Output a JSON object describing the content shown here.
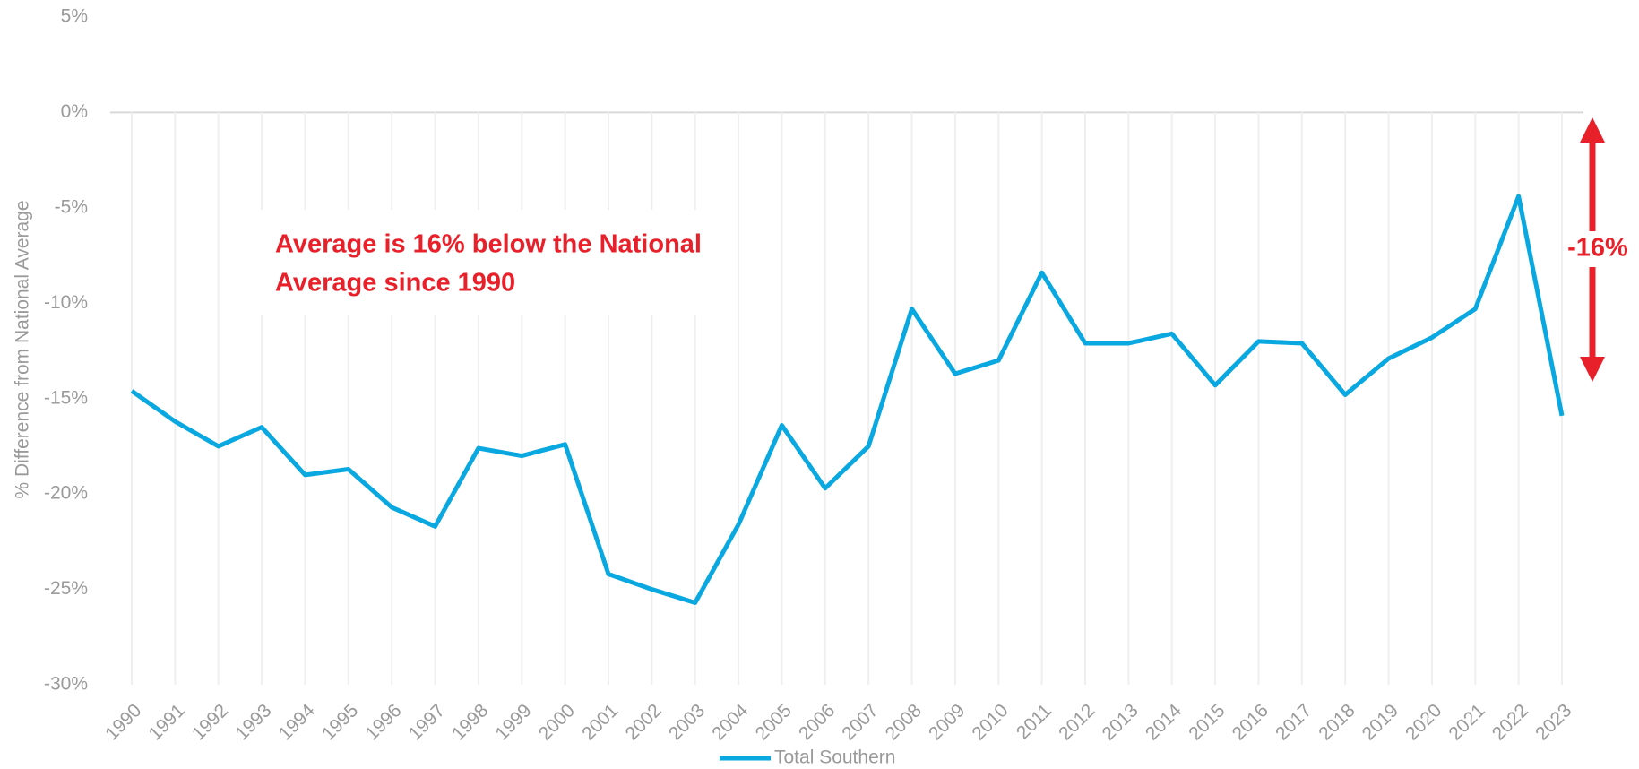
{
  "chart_data": {
    "type": "line",
    "y_label": "% Difference from National Average",
    "annotation": [
      "Average is 16% below the National",
      "Average since 1990"
    ],
    "arrow_label": "-16%",
    "categories": [
      "1990",
      "1991",
      "1992",
      "1993",
      "1994",
      "1995",
      "1996",
      "1997",
      "1998",
      "1999",
      "2000",
      "2001",
      "2002",
      "2003",
      "2004",
      "2005",
      "2006",
      "2007",
      "2008",
      "2009",
      "2010",
      "2011",
      "2012",
      "2013",
      "2014",
      "2015",
      "2016",
      "2017",
      "2018",
      "2019",
      "2020",
      "2021",
      "2022",
      "2023"
    ],
    "series": [
      {
        "name": "Total Southern",
        "color": "#0aa8e0",
        "values": [
          -14.6,
          -16.2,
          -17.5,
          -16.5,
          -19.0,
          -18.7,
          -20.7,
          -21.7,
          -17.6,
          -18.0,
          -17.4,
          -24.2,
          -25.0,
          -25.7,
          -21.6,
          -16.4,
          -19.7,
          -17.5,
          -10.3,
          -13.7,
          -13.0,
          -8.4,
          -12.1,
          -12.1,
          -11.6,
          -14.3,
          -12.0,
          -12.1,
          -14.8,
          -12.9,
          -11.8,
          -10.3,
          -4.4,
          -15.9
        ]
      }
    ],
    "ylim": [
      -30,
      5
    ],
    "yticks": [
      {
        "value": 5,
        "label": "5%"
      },
      {
        "value": 0,
        "label": "0%"
      },
      {
        "value": -5,
        "label": "-5%"
      },
      {
        "value": -10,
        "label": "-10%"
      },
      {
        "value": -15,
        "label": "-15%"
      },
      {
        "value": -20,
        "label": "-20%"
      },
      {
        "value": -25,
        "label": "-25%"
      },
      {
        "value": -30,
        "label": "-30%"
      }
    ],
    "grid": true
  }
}
